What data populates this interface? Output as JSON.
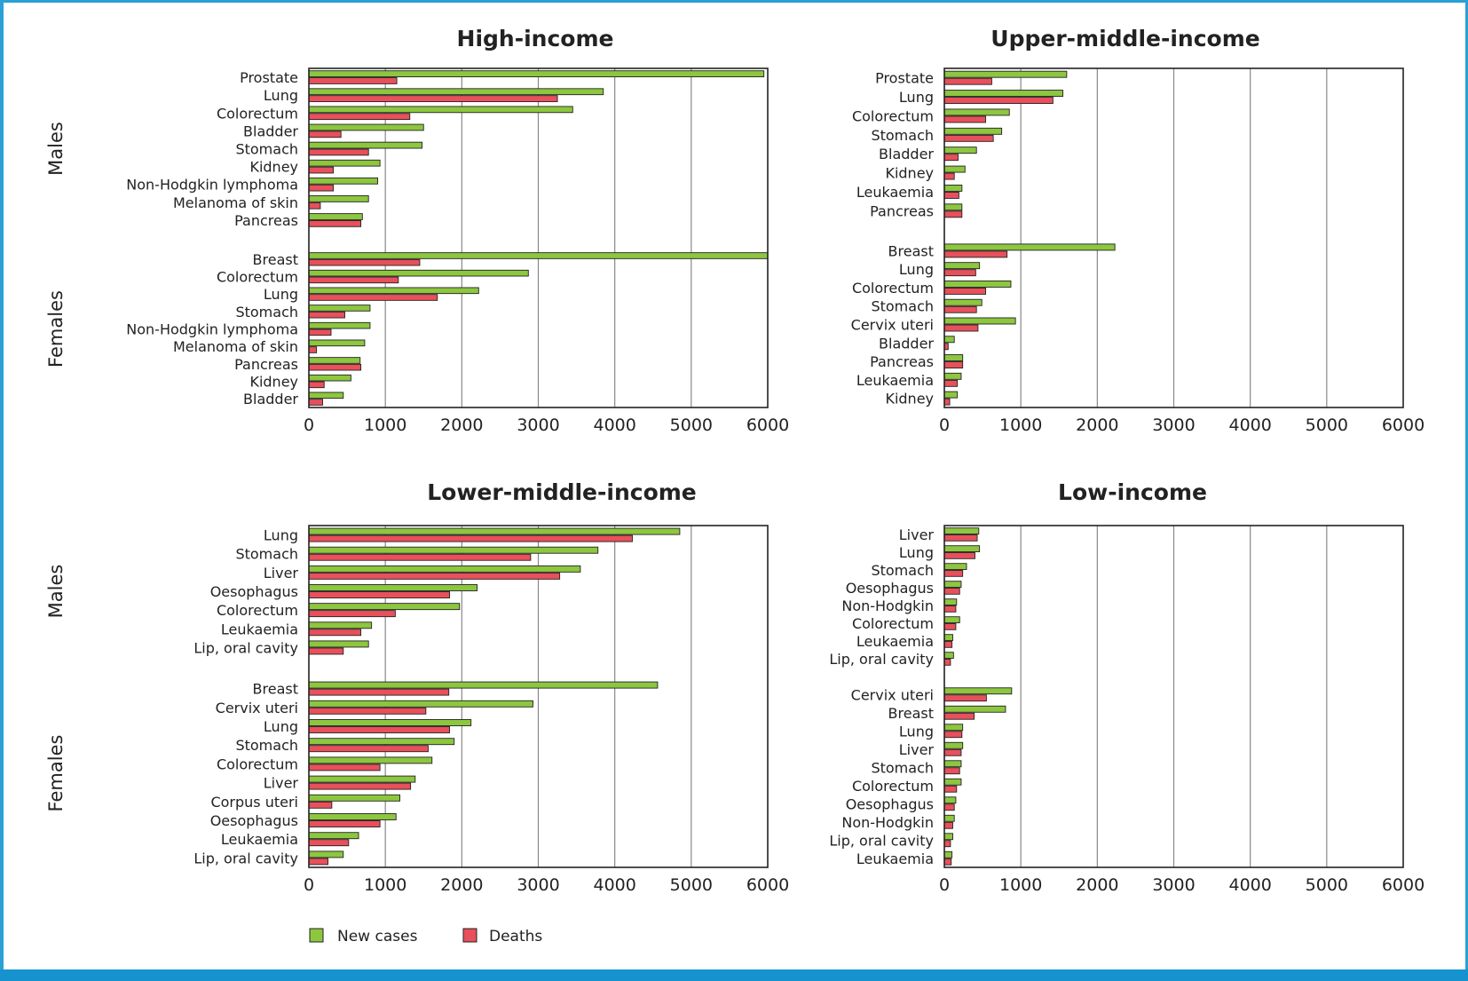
{
  "legend": {
    "new_cases": "New cases",
    "deaths": "Deaths"
  },
  "colors": {
    "new_cases": "#8dc63f",
    "deaths": "#e8505b",
    "border": "#2aa0d4",
    "footer": "#1693cf",
    "grid": "#888888"
  },
  "chart_data": [
    {
      "type": "bar",
      "title": "High-income",
      "xlim": [
        0,
        6000
      ],
      "xticks": [
        0,
        1000,
        2000,
        3000,
        4000,
        5000,
        6000
      ],
      "groups": [
        {
          "name": "Males",
          "categories": [
            "Prostate",
            "Lung",
            "Colorectum",
            "Bladder",
            "Stomach",
            "Kidney",
            "Non-Hodgkin lymphoma",
            "Melanoma of skin",
            "Pancreas"
          ],
          "new_cases": [
            5950,
            3850,
            3450,
            1500,
            1480,
            930,
            900,
            780,
            700
          ],
          "deaths": [
            1150,
            3250,
            1320,
            420,
            780,
            320,
            320,
            150,
            680
          ]
        },
        {
          "name": "Females",
          "categories": [
            "Breast",
            "Colorectum",
            "Lung",
            "Stomach",
            "Non-Hodgkin lymphoma",
            "Melanoma of skin",
            "Pancreas",
            "Kidney",
            "Bladder"
          ],
          "new_cases": [
            6000,
            2870,
            2220,
            800,
            800,
            730,
            670,
            550,
            450
          ],
          "deaths": [
            1450,
            1170,
            1680,
            470,
            290,
            100,
            680,
            200,
            180
          ]
        }
      ]
    },
    {
      "type": "bar",
      "title": "Upper-middle-income",
      "xlim": [
        0,
        6000
      ],
      "xticks": [
        0,
        1000,
        2000,
        3000,
        4000,
        5000,
        6000
      ],
      "groups": [
        {
          "name": "Males",
          "categories": [
            "Prostate",
            "Lung",
            "Colorectum",
            "Stomach",
            "Bladder",
            "Kidney",
            "Leukaemia",
            "Pancreas"
          ],
          "new_cases": [
            1600,
            1550,
            850,
            750,
            420,
            270,
            230,
            230
          ],
          "deaths": [
            620,
            1420,
            540,
            640,
            180,
            130,
            190,
            230
          ]
        },
        {
          "name": "Females",
          "categories": [
            "Breast",
            "Lung",
            "Colorectum",
            "Stomach",
            "Cervix uteri",
            "Bladder",
            "Pancreas",
            "Leukaemia",
            "Kidney"
          ],
          "new_cases": [
            2230,
            460,
            870,
            490,
            930,
            130,
            240,
            220,
            170
          ],
          "deaths": [
            820,
            410,
            540,
            420,
            440,
            50,
            240,
            170,
            70
          ]
        }
      ]
    },
    {
      "type": "bar",
      "title": "Lower-middle-income",
      "xlim": [
        0,
        6000
      ],
      "xticks": [
        0,
        1000,
        2000,
        3000,
        4000,
        5000,
        6000
      ],
      "groups": [
        {
          "name": "Males",
          "categories": [
            "Lung",
            "Stomach",
            "Liver",
            "Oesophagus",
            "Colorectum",
            "Leukaemia",
            "Lip, oral cavity"
          ],
          "new_cases": [
            4850,
            3780,
            3550,
            2200,
            1970,
            820,
            780
          ],
          "deaths": [
            4230,
            2900,
            3280,
            1840,
            1130,
            680,
            450
          ]
        },
        {
          "name": "Females",
          "categories": [
            "Breast",
            "Cervix uteri",
            "Lung",
            "Stomach",
            "Colorectum",
            "Liver",
            "Corpus uteri",
            "Oesophagus",
            "Leukaemia",
            "Lip, oral cavity"
          ],
          "new_cases": [
            4560,
            2930,
            2120,
            1900,
            1610,
            1390,
            1190,
            1140,
            650,
            450
          ],
          "deaths": [
            1830,
            1530,
            1840,
            1560,
            930,
            1330,
            300,
            930,
            520,
            250
          ]
        }
      ]
    },
    {
      "type": "bar",
      "title": "Low-income",
      "xlim": [
        0,
        6000
      ],
      "xticks": [
        0,
        1000,
        2000,
        3000,
        4000,
        5000,
        6000
      ],
      "groups": [
        {
          "name": "Males",
          "categories": [
            "Liver",
            "Lung",
            "Stomach",
            "Oesophagus",
            "Non-Hodgkin",
            "Colorectum",
            "Leukaemia",
            "Lip, oral cavity"
          ],
          "new_cases": [
            450,
            460,
            290,
            220,
            160,
            200,
            110,
            120
          ],
          "deaths": [
            430,
            400,
            240,
            200,
            150,
            150,
            100,
            80
          ]
        },
        {
          "name": "Females",
          "categories": [
            "Cervix uteri",
            "Breast",
            "Lung",
            "Liver",
            "Stomach",
            "Colorectum",
            "Oesophagus",
            "Non-Hodgkin",
            "Lip, oral cavity",
            "Leukaemia"
          ],
          "new_cases": [
            880,
            800,
            240,
            240,
            220,
            220,
            150,
            130,
            110,
            100
          ],
          "deaths": [
            550,
            390,
            230,
            220,
            200,
            160,
            130,
            110,
            80,
            90
          ]
        }
      ]
    }
  ]
}
